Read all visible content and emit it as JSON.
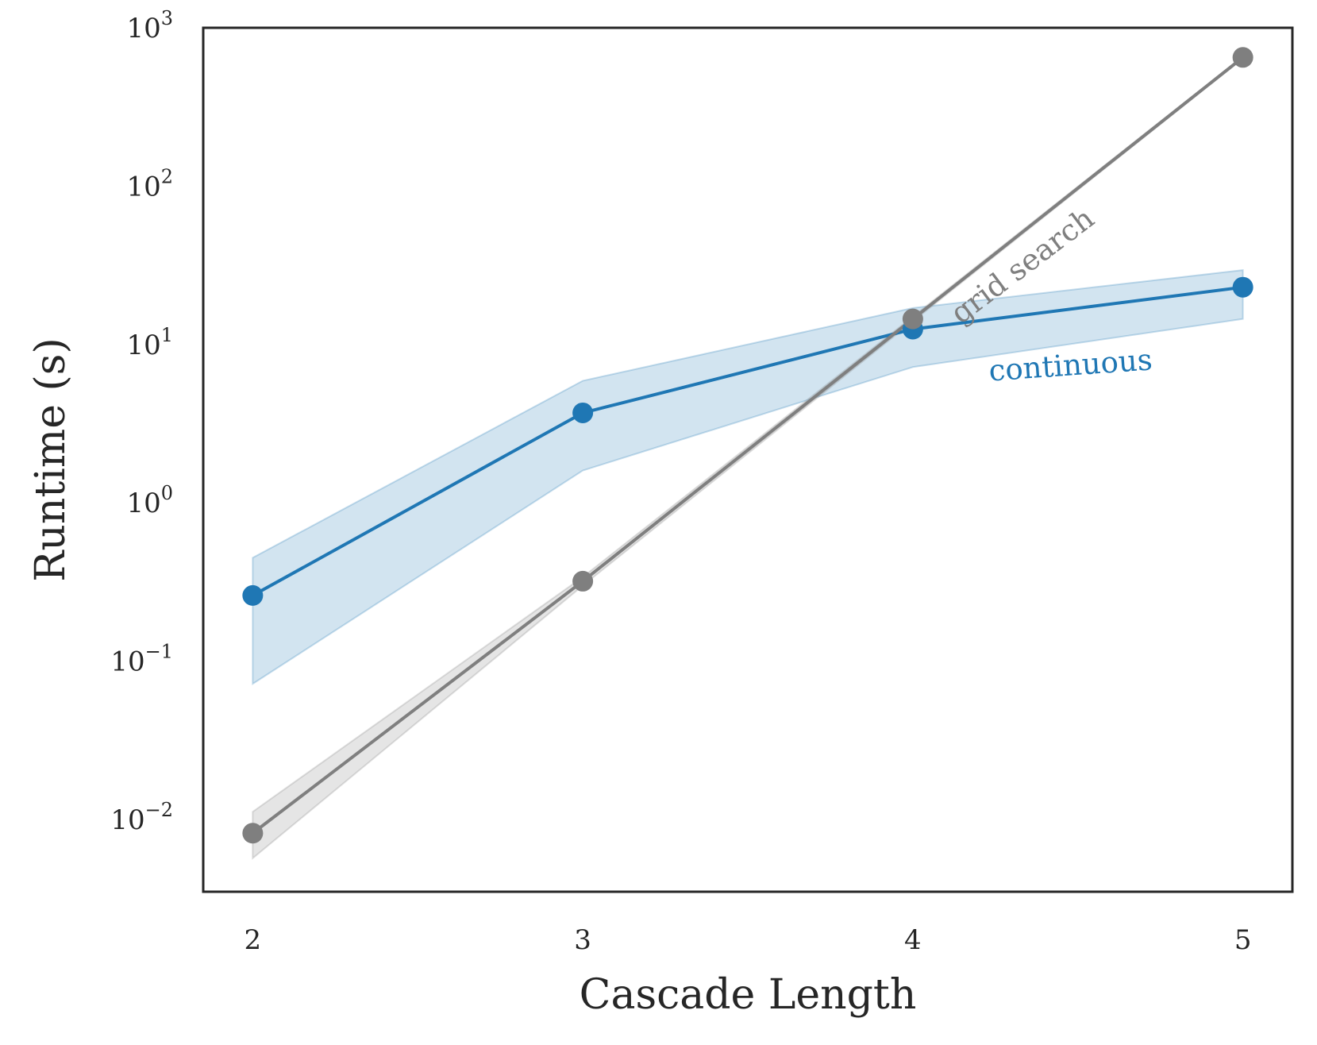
{
  "chart_data": {
    "type": "line",
    "xlabel": "Cascade Length",
    "ylabel": "Runtime (s)",
    "yscale": "log",
    "x": [
      2,
      3,
      4,
      5
    ],
    "xticks": [
      "2",
      "3",
      "4",
      "5"
    ],
    "xlim": [
      1.85,
      5.15
    ],
    "ylim": [
      0.0035,
      1000
    ],
    "yticks": [
      {
        "value": 0.01,
        "base": "10",
        "exp": "−2"
      },
      {
        "value": 0.1,
        "base": "10",
        "exp": "−1"
      },
      {
        "value": 1,
        "base": "10",
        "exp": "0"
      },
      {
        "value": 10,
        "base": "10",
        "exp": "1"
      },
      {
        "value": 100,
        "base": "10",
        "exp": "2"
      },
      {
        "value": 1000,
        "base": "10",
        "exp": "3"
      }
    ],
    "grid": false,
    "legend": "none",
    "series": [
      {
        "color": "#1f77b4",
        "band_color": "#1f77b4",
        "values": [
          0.26,
          3.7,
          12.5,
          23
        ],
        "lower": [
          0.072,
          1.6,
          7.2,
          14.5
        ],
        "upper": [
          0.45,
          5.9,
          17,
          29.5
        ]
      },
      {
        "color": "#7f7f7f",
        "band_color": "#7f7f7f",
        "values": [
          0.0082,
          0.32,
          14.5,
          650
        ],
        "lower": [
          0.0057,
          0.3,
          14,
          640
        ],
        "upper": [
          0.0112,
          0.34,
          15,
          660
        ]
      }
    ],
    "annotations": [
      {
        "text": "grid search",
        "color": "#7f7f7f",
        "x": 4.35,
        "y": 28,
        "rotation": -37
      },
      {
        "text": "continuous",
        "color": "#1f77b4",
        "x": 4.48,
        "y": 6.4,
        "rotation": -4
      }
    ]
  }
}
